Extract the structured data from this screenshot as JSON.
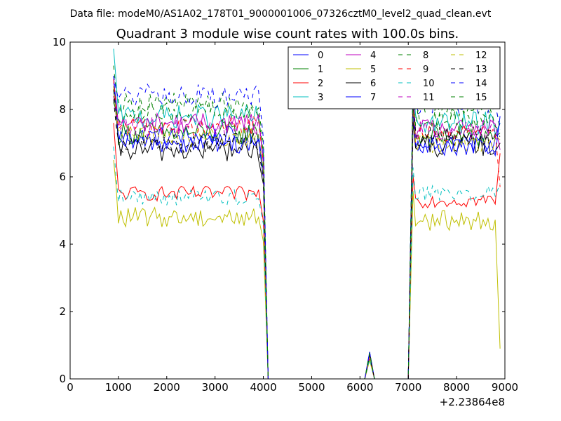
{
  "suptitle": "Data file: modeM0/AS1A02_178T01_9000001006_07326cztM0_level2_quad_clean.evt",
  "chart_data": {
    "type": "line",
    "title": "Quadrant 3 module wise count rates with 100.0s bins.",
    "xlabel": "",
    "ylabel": "",
    "x_offset_label": "+2.23864e8",
    "xlim": [
      0,
      9000
    ],
    "ylim": [
      0,
      10
    ],
    "xticks": [
      0,
      1000,
      2000,
      3000,
      4000,
      5000,
      6000,
      7000,
      8000,
      9000
    ],
    "yticks": [
      0,
      2,
      4,
      6,
      8,
      10
    ],
    "legend_position": "upper-right",
    "legend_columns": 4,
    "segment1": {
      "x_start": 900,
      "x_end": 3900,
      "drop_x": 4000,
      "zero_x": 4100
    },
    "bump": {
      "x0": 6100,
      "peak_x": 6200,
      "x1": 6300
    },
    "segment2": {
      "rise_x": 7000,
      "x_start": 7100,
      "x_end": 8800,
      "drop_x": 8900
    },
    "series": [
      {
        "name": "0",
        "color": "#0000ff",
        "dashed": false,
        "first": 8.7,
        "level1": 7.2,
        "level2": 7.0,
        "end": 7.6,
        "noise": 0.3,
        "bump": 0.7
      },
      {
        "name": "1",
        "color": "#008000",
        "dashed": false,
        "first": 8.6,
        "level1": 7.3,
        "level2": 7.2,
        "end": 7.3,
        "noise": 0.35,
        "bump": 0.72
      },
      {
        "name": "2",
        "color": "#ff0000",
        "dashed": false,
        "first": 7.6,
        "level1": 5.5,
        "level2": 5.3,
        "end": 6.7,
        "noise": 0.22,
        "bump": 0.6
      },
      {
        "name": "3",
        "color": "#00bfbf",
        "dashed": false,
        "first": 9.8,
        "level1": 7.8,
        "level2": 7.6,
        "end": 7.6,
        "noise": 0.35,
        "bump": 0.75
      },
      {
        "name": "4",
        "color": "#bf00bf",
        "dashed": false,
        "first": 8.8,
        "level1": 7.6,
        "level2": 7.4,
        "end": 6.8,
        "noise": 0.3,
        "bump": 0.72
      },
      {
        "name": "5",
        "color": "#bfbf00",
        "dashed": false,
        "first": 6.5,
        "level1": 4.8,
        "level2": 4.7,
        "end": 0.9,
        "noise": 0.3,
        "bump": 0.55
      },
      {
        "name": "6",
        "color": "#000000",
        "dashed": false,
        "first": 8.6,
        "level1": 6.8,
        "level2": 6.9,
        "end": 7.0,
        "noise": 0.35,
        "bump": 0.7
      },
      {
        "name": "7",
        "color": "#0000ff",
        "dashed": false,
        "first": 9.0,
        "level1": 7.0,
        "level2": 6.9,
        "end": 7.8,
        "noise": 0.3,
        "bump": 0.8
      },
      {
        "name": "8",
        "color": "#008000",
        "dashed": true,
        "first": 9.3,
        "level1": 8.2,
        "level2": 8.0,
        "end": 7.4,
        "noise": 0.3,
        "bump": 0.8
      },
      {
        "name": "9",
        "color": "#ff0000",
        "dashed": true,
        "first": 8.9,
        "level1": 7.5,
        "level2": 7.3,
        "end": 5.7,
        "noise": 0.3,
        "bump": 0.7
      },
      {
        "name": "10",
        "color": "#00bfbf",
        "dashed": true,
        "first": 6.9,
        "level1": 5.4,
        "level2": 5.5,
        "end": 5.8,
        "noise": 0.25,
        "bump": 0.6
      },
      {
        "name": "11",
        "color": "#bf00bf",
        "dashed": true,
        "first": 8.4,
        "level1": 7.5,
        "level2": 7.4,
        "end": 7.0,
        "noise": 0.3,
        "bump": 0.7
      },
      {
        "name": "12",
        "color": "#bfbf00",
        "dashed": true,
        "first": 8.7,
        "level1": 7.2,
        "level2": 7.0,
        "end": 7.1,
        "noise": 0.3,
        "bump": 0.7
      },
      {
        "name": "13",
        "color": "#000000",
        "dashed": true,
        "first": 8.3,
        "level1": 7.0,
        "level2": 7.2,
        "end": 7.2,
        "noise": 0.3,
        "bump": 0.7
      },
      {
        "name": "14",
        "color": "#0000ff",
        "dashed": true,
        "first": 9.0,
        "level1": 8.4,
        "level2": 8.2,
        "end": 7.5,
        "noise": 0.35,
        "bump": 0.8
      },
      {
        "name": "15",
        "color": "#008000",
        "dashed": true,
        "first": 8.2,
        "level1": 7.9,
        "level2": 7.7,
        "end": 7.4,
        "noise": 0.3,
        "bump": 0.75
      }
    ]
  }
}
